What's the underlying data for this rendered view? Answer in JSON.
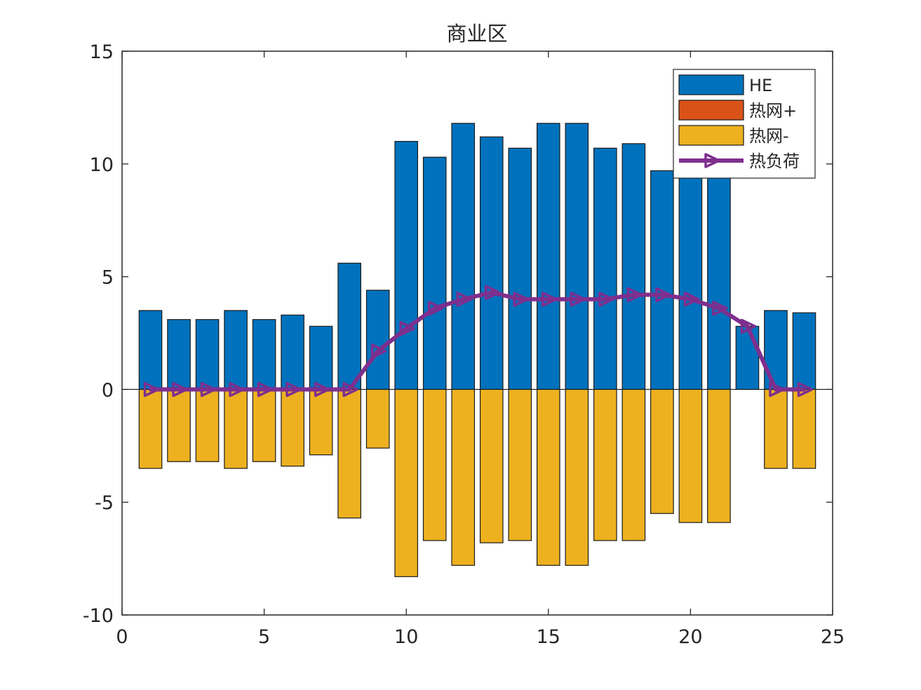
{
  "chart_data": {
    "type": "bar",
    "title": "商业区",
    "xlabel": "",
    "ylabel": "",
    "xlim": [
      0,
      25
    ],
    "ylim": [
      -10,
      15
    ],
    "xticks": [
      0,
      5,
      10,
      15,
      20,
      25
    ],
    "yticks": [
      -10,
      -5,
      0,
      5,
      10,
      15
    ],
    "x": [
      1,
      2,
      3,
      4,
      5,
      6,
      7,
      8,
      9,
      10,
      11,
      12,
      13,
      14,
      15,
      16,
      17,
      18,
      19,
      20,
      21,
      22,
      23,
      24
    ],
    "series": [
      {
        "name": "HE",
        "kind": "bar",
        "color": "#0072BD",
        "values": [
          3.5,
          3.1,
          3.1,
          3.5,
          3.1,
          3.3,
          2.8,
          5.6,
          4.4,
          11.0,
          10.3,
          11.8,
          11.2,
          10.7,
          11.8,
          11.8,
          10.7,
          10.9,
          9.7,
          9.7,
          9.7,
          2.8,
          3.5,
          3.4
        ]
      },
      {
        "name": "热网+",
        "kind": "bar",
        "color": "#D95319",
        "values": [
          0,
          0,
          0,
          0,
          0,
          0,
          0,
          0,
          0,
          0,
          0,
          0,
          0,
          0,
          0,
          0,
          0,
          0,
          0,
          0,
          0,
          0,
          0,
          0
        ]
      },
      {
        "name": "热网-",
        "kind": "bar",
        "color": "#EDB120",
        "values": [
          -3.5,
          -3.2,
          -3.2,
          -3.5,
          -3.2,
          -3.4,
          -2.9,
          -5.7,
          -2.6,
          -8.3,
          -6.7,
          -7.8,
          -6.8,
          -6.7,
          -7.8,
          -7.8,
          -6.7,
          -6.7,
          -5.5,
          -5.9,
          -5.9,
          0,
          -3.5,
          -3.5
        ]
      },
      {
        "name": "热负荷",
        "kind": "line",
        "marker": "triangle-right",
        "color": "#7E2F8E",
        "values": [
          0,
          0,
          0,
          0,
          0,
          0,
          0,
          0,
          1.7,
          2.7,
          3.6,
          4.0,
          4.3,
          4.0,
          4.0,
          4.0,
          4.0,
          4.2,
          4.2,
          4.0,
          3.6,
          2.8,
          0,
          0
        ]
      }
    ],
    "legend": {
      "position": "top-right",
      "entries": [
        "HE",
        "热网+",
        "热网-",
        "热负荷"
      ]
    },
    "grid": false
  }
}
